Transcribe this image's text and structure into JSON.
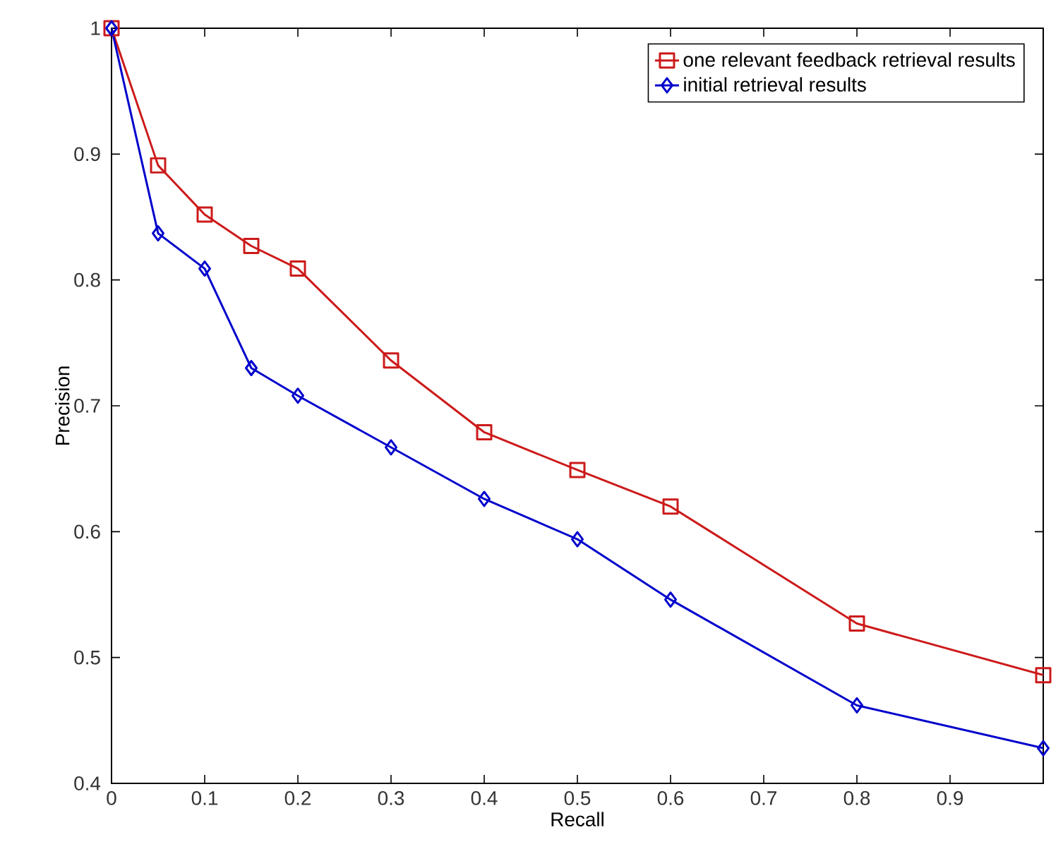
{
  "chart_data": {
    "type": "line",
    "xlabel": "Recall",
    "ylabel": "Precision",
    "x": [
      0,
      0.05,
      0.1,
      0.15,
      0.2,
      0.3,
      0.4,
      0.5,
      0.6,
      0.8,
      1.0
    ],
    "series": [
      {
        "name": "one relevant feedback retrieval results",
        "color": "#cc1a1a",
        "marker": "square",
        "values": [
          1.0,
          0.891,
          0.852,
          0.827,
          0.809,
          0.736,
          0.679,
          0.649,
          0.62,
          0.527,
          0.486
        ]
      },
      {
        "name": "initial retrieval results",
        "color": "#0000cc",
        "marker": "diamond",
        "values": [
          1.0,
          0.837,
          0.809,
          0.73,
          0.708,
          0.667,
          0.626,
          0.594,
          0.546,
          0.462,
          0.428
        ]
      }
    ],
    "xlim": [
      0,
      1
    ],
    "ylim": [
      0.4,
      1
    ],
    "xticks": [
      0,
      0.1,
      0.2,
      0.3,
      0.4,
      0.5,
      0.6,
      0.7,
      0.8,
      0.9,
      {
        "value": 1,
        "label": null
      }
    ],
    "yticks": [
      0.4,
      0.5,
      0.6,
      0.7,
      0.8,
      0.9,
      1
    ],
    "legend": "top right",
    "grid": false,
    "line_style": "solid"
  }
}
